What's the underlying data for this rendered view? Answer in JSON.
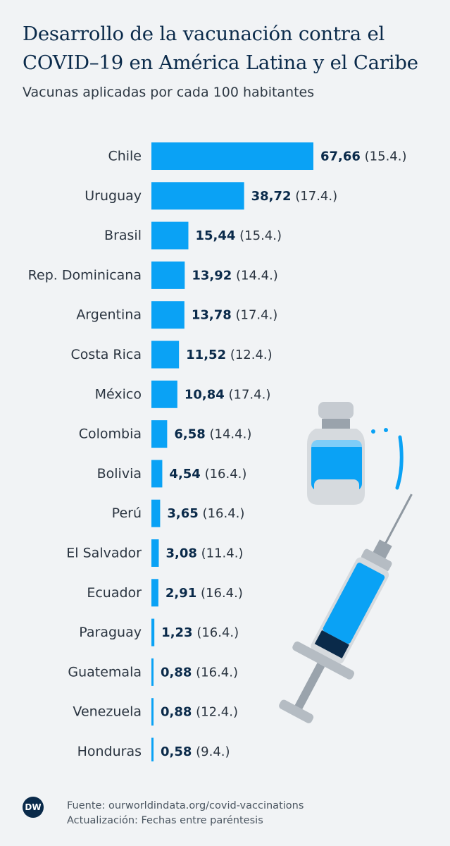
{
  "header": {
    "title": "Desarrollo de la vacunación contra el COVID–19 en América Latina y el Caribe",
    "subtitle": "Vacunas aplicadas por cada 100 habitantes"
  },
  "chart_data": {
    "type": "bar",
    "orientation": "horizontal",
    "categories": [
      "Chile",
      "Uruguay",
      "Brasil",
      "Rep. Dominicana",
      "Argentina",
      "Costa Rica",
      "México",
      "Colombia",
      "Bolivia",
      "Perú",
      "El Salvador",
      "Ecuador",
      "Paraguay",
      "Guatemala",
      "Venezuela",
      "Honduras"
    ],
    "values": [
      67.66,
      38.72,
      15.44,
      13.92,
      13.78,
      11.52,
      10.84,
      6.58,
      4.54,
      3.65,
      3.08,
      2.91,
      1.23,
      0.88,
      0.88,
      0.58
    ],
    "value_labels": [
      "67,66",
      "38,72",
      "15,44",
      "13,92",
      "13,78",
      "11,52",
      "10,84",
      "6,58",
      "4,54",
      "3,65",
      "3,08",
      "2,91",
      "1,23",
      "0,88",
      "0,88",
      "0,58"
    ],
    "dates": [
      "(15.4.)",
      "(17.4.)",
      "(15.4.)",
      "(14.4.)",
      "(17.4.)",
      "(12.4.)",
      "(17.4.)",
      "(14.4.)",
      "(16.4.)",
      "(16.4.)",
      "(11.4.)",
      "(16.4.)",
      "(16.4.)",
      "(16.4.)",
      "(12.4.)",
      "(9.4.)"
    ],
    "bar_color": "#0aa2f5",
    "grid": false,
    "legend": "none"
  },
  "footer": {
    "logo_text": "DW",
    "source": "Fuente: ourworldindata.org/covid-vaccinations",
    "update": "Actualización: Fechas entre paréntesis"
  }
}
